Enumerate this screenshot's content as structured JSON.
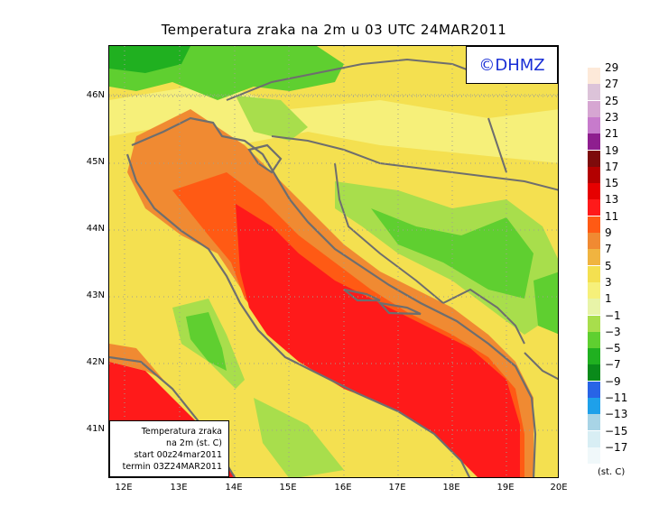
{
  "title": "Temperatura zraka na 2m u 03 UTC 24MAR2011",
  "logo": "©DHMZ",
  "info_box": {
    "line1": "Temperatura zraka",
    "line2": "na 2m (st. C)",
    "line3": "start 00z24mar2011",
    "line4": "termin 03Z24MAR2011"
  },
  "axes": {
    "lat_labels": [
      "46N",
      "45N",
      "44N",
      "43N",
      "42N",
      "41N"
    ],
    "lon_labels": [
      "12E",
      "13E",
      "14E",
      "15E",
      "16E",
      "17E",
      "18E",
      "19E",
      "20E"
    ]
  },
  "legend": {
    "units": "(st. C)",
    "labels": [
      "29",
      "27",
      "25",
      "23",
      "21",
      "19",
      "17",
      "15",
      "13",
      "11",
      "9",
      "7",
      "5",
      "3",
      "1",
      "−1",
      "−3",
      "−5",
      "−7",
      "−9",
      "−11",
      "−13",
      "−15",
      "−17"
    ],
    "colors": [
      "#fde9d9",
      "#dcc3d9",
      "#d6a6d2",
      "#c77bcc",
      "#8e1e8f",
      "#7d0b0b",
      "#b30000",
      "#e60000",
      "#ff1a1a",
      "#ff5a14",
      "#f08a32",
      "#f0b440",
      "#f4e050",
      "#f6f07a",
      "#e8f4a8",
      "#a8de4c",
      "#5fcf30",
      "#20b020",
      "#0a8a1a",
      "#2864e6",
      "#1ea0ea",
      "#a8d4e6",
      "#d8eef4",
      "#f0f8fa"
    ]
  },
  "colors": {
    "sea_warm": "#ff1a1a",
    "coast_warm": "#f08a32",
    "land_mild": "#f4e050",
    "land_cold": "#5fcf30",
    "land_coldest": "#20b020",
    "logo_text": "#1a2fd6",
    "border_lines": "#6e6e6e"
  }
}
